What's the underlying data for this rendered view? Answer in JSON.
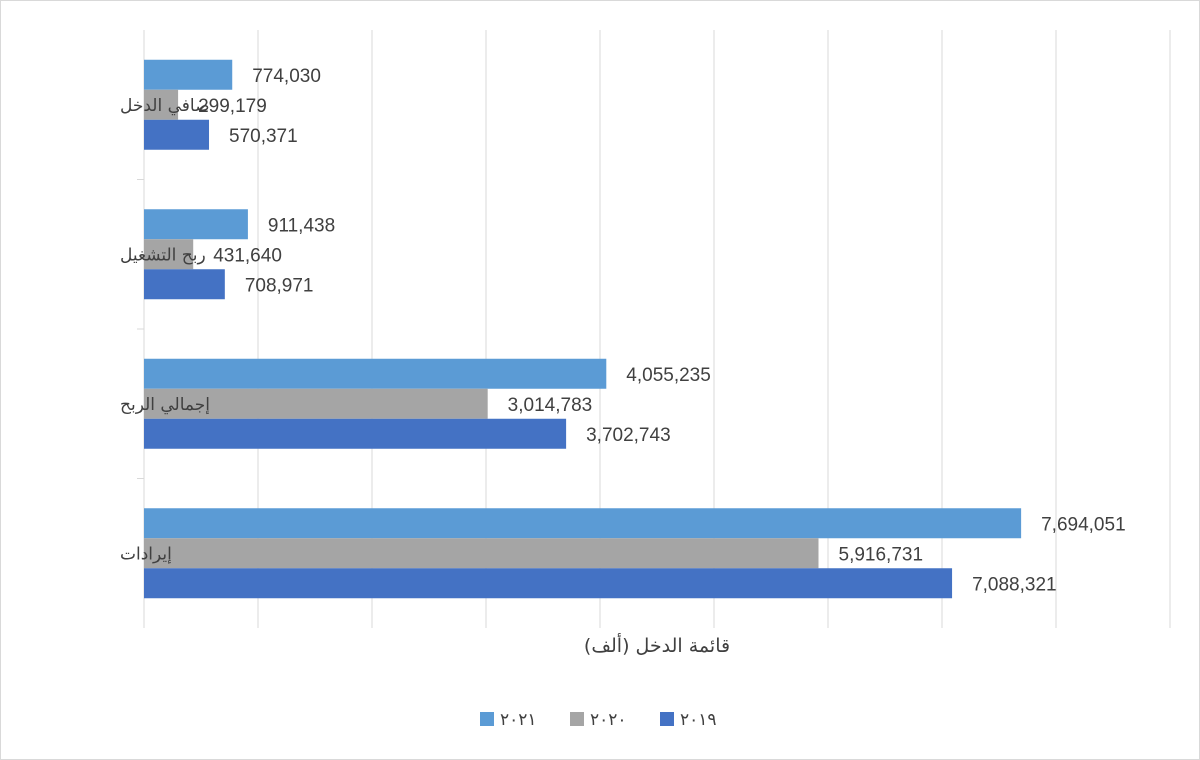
{
  "chart_data": {
    "type": "bar",
    "orientation": "horizontal",
    "title": "",
    "xlabel": "قائمة الدخل (ألف)",
    "ylabel": "",
    "categories": [
      "صافي الدخل",
      "ربح التشغيل",
      "إجمالي الربح",
      "إيرادات"
    ],
    "series": [
      {
        "name": "٢٠٢١",
        "color": "#5B9BD5",
        "values": [
          774030,
          911438,
          4055235,
          7694051
        ],
        "labels": [
          "774,030",
          "911,438",
          "4,055,235",
          "7,694,051"
        ]
      },
      {
        "name": "٢٠٢٠",
        "color": "#A5A5A5",
        "values": [
          299179,
          431640,
          3014783,
          5916731
        ],
        "labels": [
          "299,179",
          "431,640",
          "3,014,783",
          "5,916,731"
        ]
      },
      {
        "name": "٢٠١٩",
        "color": "#4472C4",
        "values": [
          570371,
          708971,
          3702743,
          7088321
        ],
        "labels": [
          "570,371",
          "708,971",
          "3,702,743",
          "7,088,321"
        ]
      }
    ],
    "xlim": [
      0,
      9000000
    ],
    "grid": true,
    "legend_position": "bottom"
  }
}
